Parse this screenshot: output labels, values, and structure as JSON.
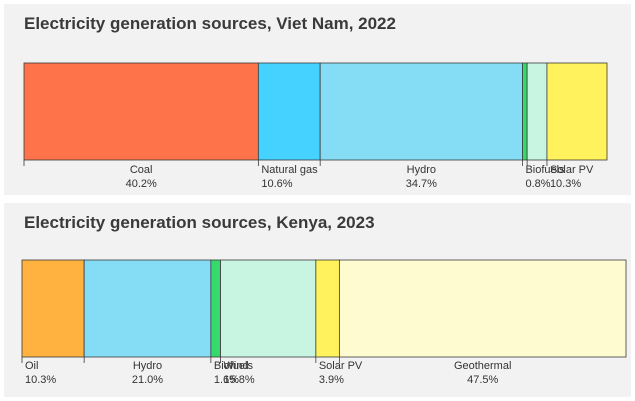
{
  "chart_data": [
    {
      "type": "bar",
      "orientation": "horizontal-stacked-100",
      "title": "Electricity generation sources, Viet Nam, 2022",
      "categories": [
        "Coal",
        "Natural gas",
        "Hydro",
        "Biofuels",
        "Wind",
        "Solar PV"
      ],
      "values": [
        40.2,
        10.6,
        34.7,
        0.8,
        3.4,
        10.3
      ],
      "value_labels": [
        "40.2%",
        "10.6%",
        "34.7%",
        "0.8%",
        "",
        "10.3%"
      ],
      "colors": [
        "#ff734a",
        "#45d2ff",
        "#85ddf5",
        "#36d96b",
        "#c8f5e1",
        "#fff25c"
      ],
      "unit": "%",
      "grid": false,
      "legend": "none"
    },
    {
      "type": "bar",
      "orientation": "horizontal-stacked-100",
      "title": "Electricity generation sources, Kenya, 2023",
      "categories": [
        "Oil",
        "Hydro",
        "Biofuels",
        "Wind",
        "Solar PV",
        "Geothermal"
      ],
      "values": [
        10.3,
        21.0,
        1.6,
        15.8,
        3.9,
        47.5
      ],
      "value_labels": [
        "10.3%",
        "21.0%",
        "1.6%",
        "15.8%",
        "3.9%",
        "47.5%"
      ],
      "colors": [
        "#ffb23f",
        "#85ddf5",
        "#36d96b",
        "#c8f5e1",
        "#fff25c",
        "#fffbd0"
      ],
      "unit": "%",
      "grid": false,
      "legend": "none"
    }
  ]
}
